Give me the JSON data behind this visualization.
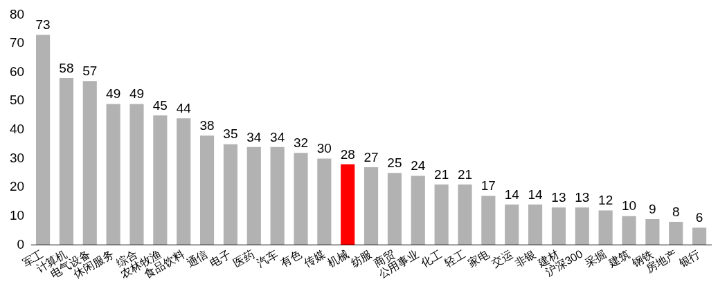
{
  "chart_data": {
    "type": "bar",
    "categories": [
      "军工",
      "计算机",
      "电气设备",
      "休闲服务",
      "综合",
      "农林牧渔",
      "食品饮料",
      "通信",
      "电子",
      "医药",
      "汽车",
      "有色",
      "传媒",
      "机械",
      "纺服",
      "商贸",
      "公用事业",
      "化工",
      "轻工",
      "家电",
      "交运",
      "非银",
      "建材",
      "沪深300",
      "采掘",
      "建筑",
      "钢铁",
      "房地产",
      "银行"
    ],
    "values": [
      73,
      58,
      57,
      49,
      49,
      45,
      44,
      38,
      35,
      34,
      34,
      32,
      30,
      28,
      27,
      25,
      24,
      21,
      21,
      17,
      14,
      14,
      13,
      13,
      12,
      10,
      9,
      8,
      6
    ],
    "colors": [
      "#b2b2b2",
      "#b2b2b2",
      "#b2b2b2",
      "#b2b2b2",
      "#b2b2b2",
      "#b2b2b2",
      "#b2b2b2",
      "#b2b2b2",
      "#b2b2b2",
      "#b2b2b2",
      "#b2b2b2",
      "#b2b2b2",
      "#b2b2b2",
      "#ff0000",
      "#b2b2b2",
      "#b2b2b2",
      "#b2b2b2",
      "#b2b2b2",
      "#b2b2b2",
      "#b2b2b2",
      "#b2b2b2",
      "#b2b2b2",
      "#b2b2b2",
      "#b2b2b2",
      "#b2b2b2",
      "#b2b2b2",
      "#b2b2b2",
      "#b2b2b2",
      "#b2b2b2"
    ],
    "ylim": [
      0,
      80
    ],
    "yticks": [
      0,
      10,
      20,
      30,
      40,
      50,
      60,
      70,
      80
    ],
    "data_labels": true,
    "grid": false,
    "legend": false
  }
}
